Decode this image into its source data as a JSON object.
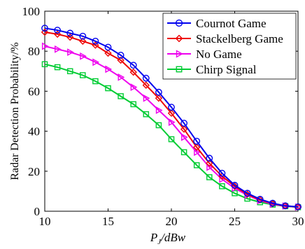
{
  "chart_data": {
    "type": "line",
    "title": "",
    "xlabel_main": "P",
    "xlabel_sub": "J",
    "xlabel_unit": "/dBw",
    "ylabel": "Radar Detection Probability/%",
    "xlim": [
      10,
      30
    ],
    "ylim": [
      0,
      100
    ],
    "xticks": [
      10,
      15,
      20,
      25,
      30
    ],
    "yticks": [
      0,
      20,
      40,
      60,
      80,
      100
    ],
    "grid": false,
    "legend_position": "top-right",
    "x": [
      10,
      11,
      12,
      13,
      14,
      15,
      16,
      17,
      18,
      19,
      20,
      21,
      22,
      23,
      24,
      25,
      26,
      27,
      28,
      29,
      30
    ],
    "series": [
      {
        "name": "Cournot Game",
        "color": "#0000ee",
        "marker": "circle",
        "values": [
          91.5,
          90.5,
          89,
          87.5,
          85,
          82,
          78,
          73,
          66.5,
          59.5,
          52,
          44,
          35,
          26.5,
          19,
          13,
          9,
          6,
          4,
          2.7,
          2.2
        ]
      },
      {
        "name": "Stackelberg Game",
        "color": "#ee0000",
        "marker": "diamond",
        "values": [
          89.5,
          88.5,
          87,
          85,
          83,
          79,
          75.5,
          69.5,
          63,
          56.5,
          49,
          41,
          32,
          24,
          17.5,
          12.5,
          8.5,
          5.7,
          3.8,
          2.7,
          2.1
        ]
      },
      {
        "name": "No Game",
        "color": "#ee00ee",
        "marker": "triangle-right",
        "values": [
          82.5,
          81,
          79.5,
          77.5,
          74.5,
          71,
          67,
          62,
          56.5,
          50.5,
          44.5,
          37,
          29.5,
          22,
          16,
          11.5,
          8,
          5.3,
          3.5,
          2.6,
          2.1
        ]
      },
      {
        "name": "Chirp Signal",
        "color": "#00cc33",
        "marker": "square",
        "values": [
          73.5,
          72,
          70,
          68,
          65,
          61.5,
          57.5,
          53.5,
          48.5,
          43,
          36,
          29.5,
          23,
          17,
          12.5,
          9,
          6.3,
          4.5,
          3.3,
          2.5,
          2
        ]
      }
    ]
  }
}
